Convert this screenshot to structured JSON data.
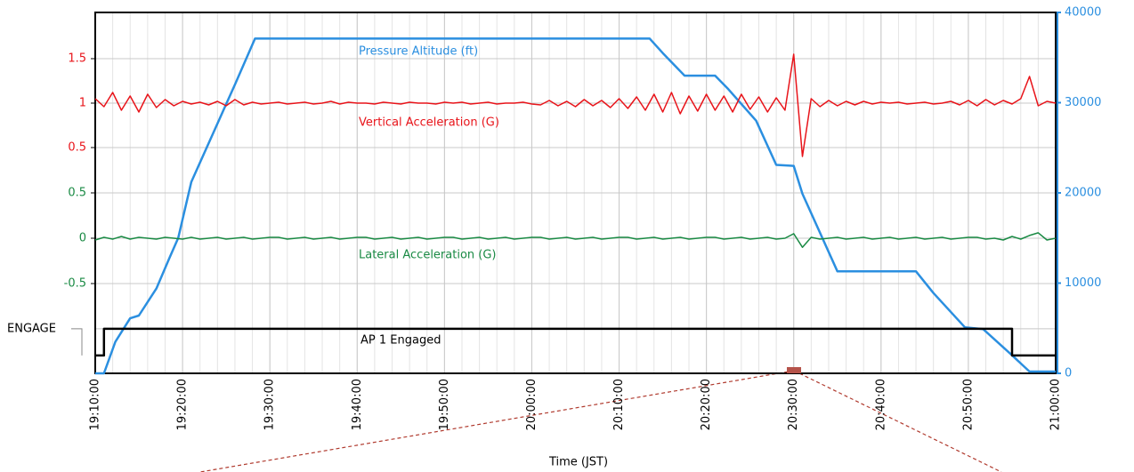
{
  "chart_data": {
    "type": "line",
    "xlabel": "Time (JST)",
    "xlim": [
      "19:10:00",
      "21:00:00"
    ],
    "xticks": [
      "19:10:00",
      "19:20:00",
      "19:30:00",
      "19:40:00",
      "19:50:00",
      "20:00:00",
      "20:10:00",
      "20:20:00",
      "20:30:00",
      "20:40:00",
      "20:50:00",
      "21:00:00"
    ],
    "ylim": [
      -2.04,
      2.02
    ],
    "yticks": [
      0.5,
      1.0,
      1.5
    ],
    "ycolor": "#e8141a",
    "y3lim": [
      -1.49,
      2.49
    ],
    "y3ticks": [
      -0.5,
      0.0,
      0.5
    ],
    "y3color": "#1a8a44",
    "y2lim": [
      0,
      40000
    ],
    "y2ticks": [
      0,
      10000,
      20000,
      30000,
      40000
    ],
    "y2color": "#2b8fe0",
    "aplim": [
      -0.67,
      12.87
    ],
    "apticks": [
      {
        "value": 1,
        "label": "ENGAGE"
      }
    ],
    "grid": true,
    "x": [
      "19:10:00",
      "19:11:00",
      "19:12:00",
      "19:13:00",
      "19:14:00",
      "19:15:00",
      "19:16:00",
      "19:17:00",
      "19:18:00",
      "19:19:00",
      "19:20:00",
      "19:21:00",
      "19:22:00",
      "19:23:00",
      "19:24:00",
      "19:25:00",
      "19:26:00",
      "19:27:00",
      "19:28:00",
      "19:29:00",
      "19:30:00",
      "19:31:00",
      "19:32:00",
      "19:33:00",
      "19:34:00",
      "19:35:00",
      "19:36:00",
      "19:37:00",
      "19:38:00",
      "19:39:00",
      "19:40:00",
      "19:41:00",
      "19:42:00",
      "19:43:00",
      "19:44:00",
      "19:45:00",
      "19:46:00",
      "19:47:00",
      "19:48:00",
      "19:49:00",
      "19:50:00",
      "19:51:00",
      "19:52:00",
      "19:53:00",
      "19:54:00",
      "19:55:00",
      "19:56:00",
      "19:57:00",
      "19:58:00",
      "19:59:00",
      "20:00:00",
      "20:01:00",
      "20:02:00",
      "20:03:00",
      "20:04:00",
      "20:05:00",
      "20:06:00",
      "20:07:00",
      "20:08:00",
      "20:09:00",
      "20:10:00",
      "20:11:00",
      "20:12:00",
      "20:13:00",
      "20:14:00",
      "20:15:00",
      "20:16:00",
      "20:17:00",
      "20:18:00",
      "20:19:00",
      "20:20:00",
      "20:21:00",
      "20:22:00",
      "20:23:00",
      "20:24:00",
      "20:25:00",
      "20:26:00",
      "20:27:00",
      "20:28:00",
      "20:29:00",
      "20:30:00",
      "20:31:00",
      "20:32:00",
      "20:33:00",
      "20:34:00",
      "20:35:00",
      "20:36:00",
      "20:37:00",
      "20:38:00",
      "20:39:00",
      "20:40:00",
      "20:41:00",
      "20:42:00",
      "20:43:00",
      "20:44:00",
      "20:45:00",
      "20:46:00",
      "20:47:00",
      "20:48:00",
      "20:49:00",
      "20:50:00",
      "20:51:00",
      "20:52:00",
      "20:53:00",
      "20:54:00",
      "20:55:00",
      "20:56:00",
      "20:57:00",
      "20:58:00",
      "20:59:00",
      "21:00:00"
    ],
    "series": [
      {
        "name": "Pressure Altitude (ft)",
        "color": "#2b8fe0",
        "axis": "y2",
        "x": [
          "19:10:00",
          "19:11:00",
          "19:12:18",
          "19:14:00",
          "19:15:00",
          "19:17:00",
          "19:18:30",
          "19:19:30",
          "19:21:00",
          "19:23:30",
          "19:26:00",
          "19:28:18",
          "20:13:30",
          "20:15:00",
          "20:17:30",
          "20:21:00",
          "20:22:30",
          "20:25:42",
          "20:28:00",
          "20:30:00",
          "20:31:00",
          "20:35:00",
          "20:44:00",
          "20:46:00",
          "20:49:36",
          "20:51:42",
          "20:55:00",
          "20:57:00",
          "21:00:00"
        ],
        "values": [
          0,
          0,
          3500,
          6100,
          6400,
          9400,
          12800,
          15000,
          21200,
          26600,
          32000,
          37100,
          37100,
          35500,
          33000,
          33000,
          31500,
          28000,
          23100,
          23000,
          19900,
          11300,
          11300,
          8900,
          5100,
          4900,
          2000,
          200,
          200
        ]
      },
      {
        "name": "Vertical Acceleration (G)",
        "color": "#e8141a",
        "axis": "y",
        "values": [
          1.05,
          0.96,
          1.12,
          0.92,
          1.08,
          0.9,
          1.1,
          0.95,
          1.04,
          0.97,
          1.02,
          0.99,
          1.01,
          0.98,
          1.02,
          0.97,
          1.04,
          0.98,
          1.01,
          0.99,
          1.0,
          1.01,
          0.99,
          1.0,
          1.01,
          0.99,
          1.0,
          1.02,
          0.99,
          1.01,
          1.0,
          1.0,
          0.99,
          1.01,
          1.0,
          0.99,
          1.01,
          1.0,
          1.0,
          0.99,
          1.01,
          1.0,
          1.01,
          0.99,
          1.0,
          1.01,
          0.99,
          1.0,
          1.0,
          1.01,
          0.99,
          0.98,
          1.03,
          0.97,
          1.02,
          0.96,
          1.04,
          0.97,
          1.03,
          0.95,
          1.05,
          0.94,
          1.07,
          0.92,
          1.1,
          0.9,
          1.12,
          0.88,
          1.08,
          0.91,
          1.1,
          0.92,
          1.08,
          0.9,
          1.1,
          0.93,
          1.07,
          0.9,
          1.06,
          0.92,
          1.55,
          0.4,
          1.05,
          0.96,
          1.03,
          0.97,
          1.02,
          0.98,
          1.02,
          0.99,
          1.01,
          1.0,
          1.01,
          0.99,
          1.0,
          1.01,
          0.99,
          1.0,
          1.02,
          0.98,
          1.03,
          0.97,
          1.04,
          0.98,
          1.03,
          0.99,
          1.05,
          1.3,
          0.97,
          1.02,
          1.0
        ]
      },
      {
        "name": "Lateral Acceleration (G)",
        "color": "#1a8a44",
        "axis": "y3",
        "values": [
          -0.02,
          0.01,
          -0.01,
          0.02,
          -0.01,
          0.01,
          0.0,
          -0.01,
          0.01,
          0.0,
          -0.01,
          0.01,
          -0.01,
          0.0,
          0.01,
          -0.01,
          0.0,
          0.01,
          -0.01,
          0.0,
          0.01,
          0.01,
          -0.01,
          0.0,
          0.01,
          -0.01,
          0.0,
          0.01,
          -0.01,
          0.0,
          0.01,
          0.01,
          -0.01,
          0.0,
          0.01,
          -0.01,
          0.0,
          0.01,
          -0.01,
          0.0,
          0.01,
          0.01,
          -0.01,
          0.0,
          0.01,
          -0.01,
          0.0,
          0.01,
          -0.01,
          0.0,
          0.01,
          0.01,
          -0.01,
          0.0,
          0.01,
          -0.01,
          0.0,
          0.01,
          -0.01,
          0.0,
          0.01,
          0.01,
          -0.01,
          0.0,
          0.01,
          -0.01,
          0.0,
          0.01,
          -0.01,
          0.0,
          0.01,
          0.01,
          -0.01,
          0.0,
          0.01,
          -0.01,
          0.0,
          0.01,
          -0.01,
          0.0,
          0.05,
          -0.1,
          0.01,
          -0.01,
          0.0,
          0.01,
          -0.01,
          0.0,
          0.01,
          -0.01,
          0.0,
          0.01,
          -0.01,
          0.0,
          0.01,
          -0.01,
          0.0,
          0.01,
          -0.01,
          0.0,
          0.01,
          0.01,
          -0.01,
          0.0,
          -0.02,
          0.02,
          -0.01,
          0.03,
          0.06,
          -0.02,
          0.0
        ]
      },
      {
        "name": "AP 1 Engaged",
        "color": "#000000",
        "axis": "ap",
        "x": [
          "19:10:00",
          "19:11:00",
          "19:11:00",
          "20:55:00",
          "20:55:00",
          "21:00:00"
        ],
        "values": [
          0,
          0,
          1,
          1,
          0,
          0
        ]
      }
    ]
  }
}
